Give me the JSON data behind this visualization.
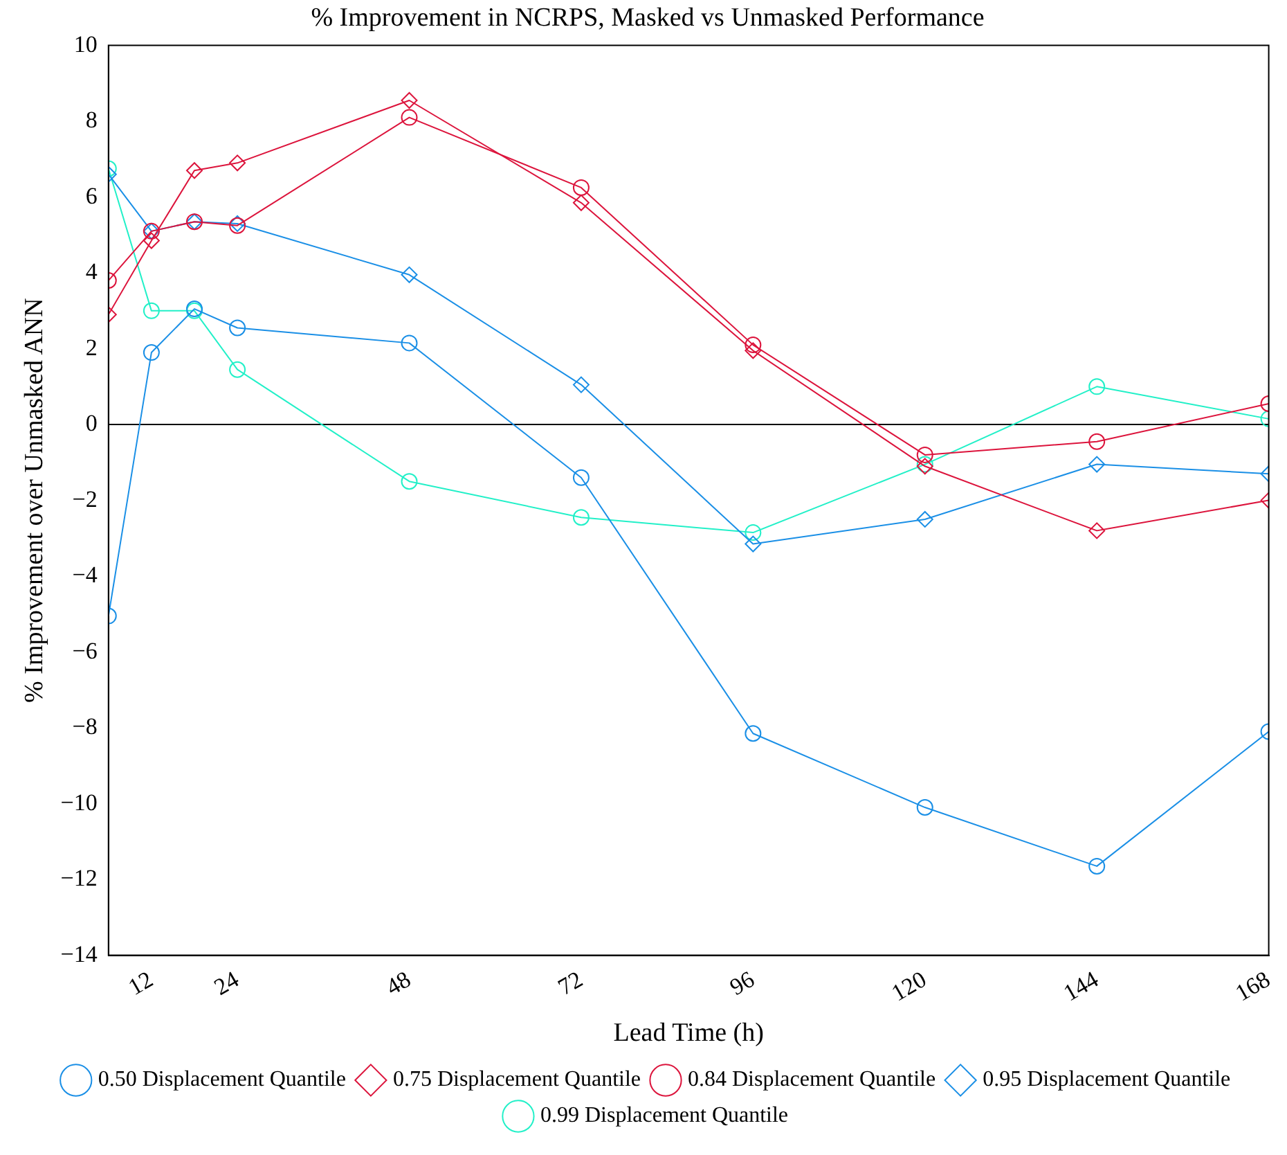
{
  "chart_data": {
    "type": "line",
    "title": "% Improvement in NCRPS, Masked vs Unmasked Performance",
    "xlabel": "Lead Time (h)",
    "ylabel": "% Improvement over Unmasked ANN",
    "x": [
      6,
      12,
      18,
      24,
      48,
      72,
      96,
      120,
      144,
      168
    ],
    "series": [
      {
        "name": "0.50 Displacement Quantile",
        "color": "#1a8fe6",
        "marker": "circle",
        "values": [
          -5.05,
          1.9,
          3.05,
          2.55,
          2.15,
          -1.4,
          -8.15,
          -10.1,
          -11.65,
          -8.1
        ]
      },
      {
        "name": "0.75 Displacement Quantile",
        "color": "#dc143c",
        "marker": "diamond",
        "values": [
          2.9,
          4.85,
          6.7,
          6.9,
          8.55,
          5.85,
          1.95,
          -1.1,
          -2.8,
          -2.0
        ]
      },
      {
        "name": "0.84 Displacement Quantile",
        "color": "#dc143c",
        "marker": "circle",
        "values": [
          3.8,
          5.1,
          5.35,
          5.25,
          8.1,
          6.25,
          2.1,
          -0.8,
          -0.45,
          0.55
        ]
      },
      {
        "name": "0.95 Displacement Quantile",
        "color": "#1a8fe6",
        "marker": "diamond",
        "values": [
          6.6,
          5.1,
          5.35,
          5.3,
          3.95,
          1.05,
          -3.15,
          -2.5,
          -1.05,
          -1.3
        ]
      },
      {
        "name": "0.99 Displacement Quantile",
        "color": "#22f0c8",
        "marker": "circle",
        "values": [
          6.75,
          3.0,
          3.0,
          1.45,
          -1.5,
          -2.45,
          -2.85,
          -1.05,
          1.0,
          0.15
        ]
      }
    ],
    "xlim": [
      6,
      168
    ],
    "xticks": [
      12,
      24,
      48,
      72,
      96,
      120,
      144,
      168
    ],
    "ylim": [
      -14,
      10
    ],
    "yticks": [
      -14,
      -12,
      -10,
      -8,
      -6,
      -4,
      -2,
      0,
      2,
      4,
      6,
      8,
      10
    ],
    "ref_lines": [
      {
        "axis": "y",
        "value": 0,
        "color": "#000000"
      }
    ],
    "grid": false,
    "legend": "bottom",
    "line_style": "solid"
  }
}
